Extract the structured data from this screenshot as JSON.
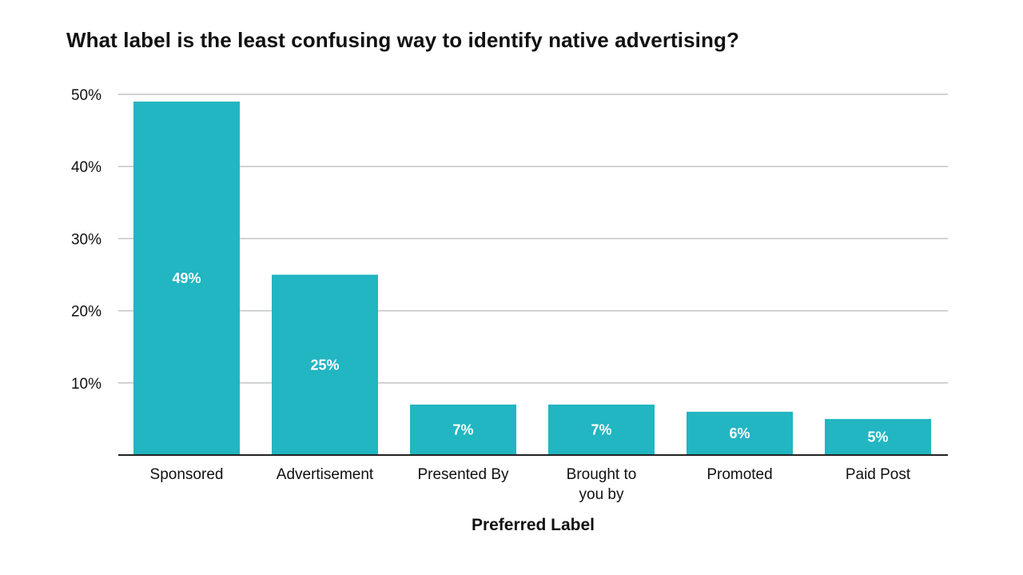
{
  "chart_data": {
    "type": "bar",
    "title": "What label is the least confusing way to identify native advertising?",
    "xlabel": "Preferred Label",
    "ylabel": "",
    "categories": [
      "Sponsored",
      "Advertisement",
      "Presented By",
      "Brought to you by",
      "Promoted",
      "Paid Post"
    ],
    "category_lines": [
      [
        "Sponsored"
      ],
      [
        "Advertisement"
      ],
      [
        "Presented By"
      ],
      [
        "Brought to",
        "you by"
      ],
      [
        "Promoted"
      ],
      [
        "Paid Post"
      ]
    ],
    "values": [
      49,
      25,
      7,
      7,
      6,
      5
    ],
    "data_labels": [
      "49%",
      "25%",
      "7%",
      "7%",
      "6%",
      "5%"
    ],
    "ylim": [
      0,
      50
    ],
    "yticks": [
      10,
      20,
      30,
      40,
      50
    ],
    "ytick_labels": [
      "10%",
      "20%",
      "30%",
      "40%",
      "50%"
    ],
    "grid": true,
    "legend": "none",
    "colors": {
      "bar": "#22b5c2",
      "grid": "#c4c4c4",
      "axis": "#222222"
    }
  }
}
